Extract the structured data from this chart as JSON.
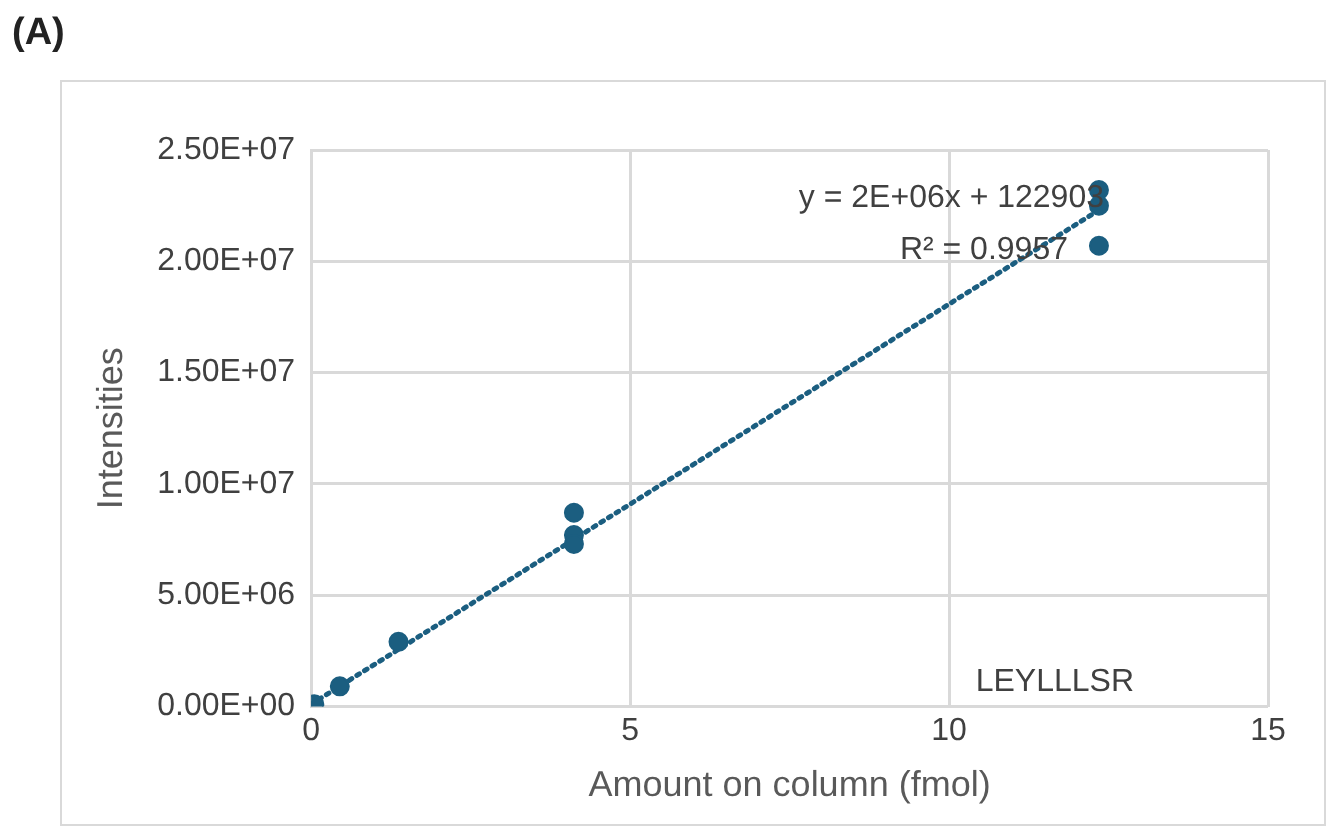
{
  "chart_data": {
    "type": "scatter",
    "title": "(A)",
    "xlabel": "Amount on column (fmol)",
    "ylabel": "Intensities",
    "xlim": [
      0,
      15
    ],
    "xticks": [
      0,
      5,
      10,
      15
    ],
    "ylim": [
      0,
      25000000
    ],
    "yticks": [
      {
        "value": 0,
        "label": "0.00E+00"
      },
      {
        "value": 5000000,
        "label": "5.00E+06"
      },
      {
        "value": 10000000,
        "label": "1.00E+07"
      },
      {
        "value": 15000000,
        "label": "1.50E+07"
      },
      {
        "value": 20000000,
        "label": "2.00E+07"
      },
      {
        "value": 25000000,
        "label": "2.50E+07"
      }
    ],
    "grid": true,
    "marker": "circle",
    "series": [
      {
        "type": "scatter",
        "color": "#1b5e80",
        "x": [
          0.05,
          0.45,
          1.37,
          4.12,
          4.12,
          4.12,
          12.35,
          12.35,
          12.35
        ],
        "values": [
          100000,
          900000,
          2900000,
          8700000,
          7700000,
          7300000,
          23200000,
          22500000,
          20700000
        ]
      },
      {
        "type": "line",
        "color": "#1b5e80",
        "line_style": "dotted",
        "marker": "none",
        "x": [
          0,
          12.35
        ],
        "values": [
          100000,
          22300000
        ]
      }
    ],
    "annotations": [
      "y = 2E+06x + 122903",
      "R² = 0.9957",
      "LEYLLLSR"
    ]
  }
}
